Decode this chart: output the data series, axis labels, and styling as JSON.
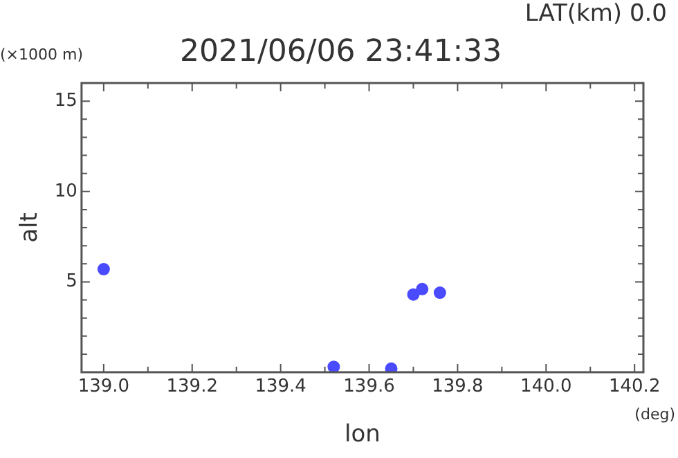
{
  "chart_data": {
    "type": "scatter",
    "title": "2021/06/06 23:41:33",
    "subtitle": "LAT(km) 0.0",
    "xlabel": "lon",
    "ylabel": "alt",
    "annotations": [
      "(×1000 m)",
      "(deg)"
    ],
    "x": [
      139.0,
      139.52,
      139.65,
      139.7,
      139.72,
      139.76
    ],
    "series": [
      {
        "color": "#4a4aff",
        "values": [
          5.7,
          0.3,
          0.2,
          4.3,
          4.6,
          4.4
        ]
      }
    ],
    "xlim": [
      138.95,
      140.22
    ],
    "ylim": [
      0,
      16
    ],
    "xticks": [
      {
        "value": 139,
        "label": "139.0"
      },
      {
        "value": 139.1,
        "label": null
      },
      139.2,
      {
        "value": 139.3,
        "label": null
      },
      139.4,
      {
        "value": 139.5,
        "label": null
      },
      139.6,
      {
        "value": 139.7,
        "label": null
      },
      139.8,
      {
        "value": 139.9,
        "label": null
      },
      {
        "value": 140,
        "label": "140.0"
      },
      {
        "value": 140.1,
        "label": null
      },
      140.2
    ],
    "yticks": [
      {
        "value": 1,
        "label": null
      },
      {
        "value": 2,
        "label": null
      },
      {
        "value": 3,
        "label": null
      },
      {
        "value": 4,
        "label": null
      },
      5,
      {
        "value": 6,
        "label": null
      },
      {
        "value": 7,
        "label": null
      },
      {
        "value": 8,
        "label": null
      },
      {
        "value": 9,
        "label": null
      },
      10,
      {
        "value": 11,
        "label": null
      },
      {
        "value": 12,
        "label": null
      },
      {
        "value": 13,
        "label": null
      },
      {
        "value": 14,
        "label": null
      },
      15,
      {
        "value": 16,
        "label": null
      }
    ],
    "marker": "circle",
    "grid": false,
    "legend": false
  }
}
